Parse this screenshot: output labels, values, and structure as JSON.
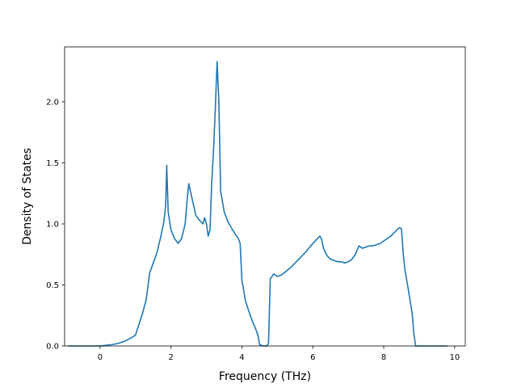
{
  "chart_data": {
    "type": "line",
    "title": "",
    "xlabel": "Frequency (THz)",
    "ylabel": "Density of States",
    "xlim": [
      -1.0,
      10.3
    ],
    "ylim": [
      0.0,
      2.45
    ],
    "grid": false,
    "legend": "none",
    "xticks": [
      0,
      2,
      4,
      6,
      8,
      10
    ],
    "xtick_labels": [
      "0",
      "2",
      "4",
      "6",
      "8",
      "10"
    ],
    "yticks": [
      0.0,
      0.5,
      1.0,
      1.5,
      2.0
    ],
    "ytick_labels": [
      "0.0",
      "0.5",
      "1.0",
      "1.5",
      "2.0"
    ],
    "series": [
      {
        "color": "#1f77b4",
        "x": [
          -0.9,
          -0.5,
          0.0,
          0.3,
          0.5,
          0.7,
          0.9,
          1.0,
          1.1,
          1.2,
          1.3,
          1.4,
          1.5,
          1.6,
          1.7,
          1.8,
          1.85,
          1.88,
          1.92,
          2.0,
          2.1,
          2.2,
          2.3,
          2.4,
          2.45,
          2.5,
          2.6,
          2.7,
          2.8,
          2.9,
          2.95,
          3.0,
          3.05,
          3.1,
          3.15,
          3.2,
          3.25,
          3.3,
          3.35,
          3.4,
          3.5,
          3.6,
          3.7,
          3.8,
          3.9,
          3.95,
          4.0,
          4.1,
          4.2,
          4.3,
          4.4,
          4.45,
          4.5,
          4.6,
          4.7,
          4.75,
          4.8,
          4.9,
          5.0,
          5.1,
          5.2,
          5.4,
          5.6,
          5.8,
          6.0,
          6.2,
          6.25,
          6.3,
          6.4,
          6.5,
          6.6,
          6.7,
          6.8,
          6.9,
          7.0,
          7.1,
          7.2,
          7.3,
          7.4,
          7.5,
          7.6,
          7.7,
          7.8,
          7.9,
          8.0,
          8.1,
          8.2,
          8.3,
          8.4,
          8.45,
          8.5,
          8.55,
          8.6,
          8.7,
          8.8,
          8.85,
          8.9,
          9.0,
          9.5,
          9.8
        ],
        "y": [
          0.0,
          0.0,
          0.0,
          0.01,
          0.02,
          0.04,
          0.07,
          0.09,
          0.18,
          0.27,
          0.38,
          0.6,
          0.68,
          0.76,
          0.88,
          1.02,
          1.15,
          1.48,
          1.1,
          0.95,
          0.88,
          0.84,
          0.88,
          1.0,
          1.18,
          1.33,
          1.2,
          1.07,
          1.03,
          1.0,
          1.05,
          1.0,
          0.9,
          0.95,
          1.35,
          1.6,
          1.95,
          2.33,
          2.0,
          1.27,
          1.1,
          1.02,
          0.97,
          0.92,
          0.88,
          0.84,
          0.54,
          0.37,
          0.28,
          0.2,
          0.13,
          0.09,
          0.01,
          0.0,
          0.0,
          0.02,
          0.55,
          0.59,
          0.57,
          0.58,
          0.6,
          0.65,
          0.71,
          0.77,
          0.84,
          0.9,
          0.87,
          0.8,
          0.74,
          0.71,
          0.7,
          0.69,
          0.69,
          0.68,
          0.69,
          0.71,
          0.75,
          0.82,
          0.8,
          0.81,
          0.82,
          0.82,
          0.83,
          0.84,
          0.86,
          0.88,
          0.9,
          0.93,
          0.96,
          0.97,
          0.96,
          0.75,
          0.62,
          0.45,
          0.27,
          0.1,
          0.0,
          0.0,
          0.0,
          0.0
        ]
      }
    ]
  }
}
